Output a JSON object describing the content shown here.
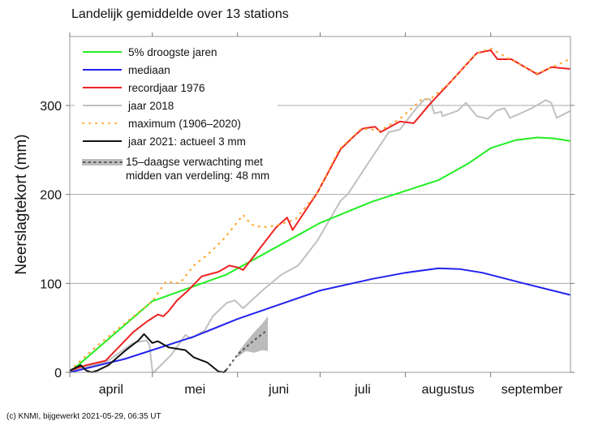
{
  "chart_data": {
    "type": "line",
    "title": "Landelijk gemiddelde over 13 stations",
    "xlabel": "",
    "ylabel": "Neerslagtekort (mm)",
    "x_unit": "days since 1 April",
    "xlim": [
      0,
      183
    ],
    "ylim": [
      0,
      377
    ],
    "yticks": [
      0,
      100,
      200,
      300
    ],
    "month_ticks": [
      0,
      30,
      61,
      91,
      122,
      153
    ],
    "month_labels": [
      {
        "label": "april",
        "mid": 15
      },
      {
        "label": "mei",
        "mid": 45.5
      },
      {
        "label": "juni",
        "mid": 76
      },
      {
        "label": "juli",
        "mid": 106.5
      },
      {
        "label": "augustus",
        "mid": 137.5
      },
      {
        "label": "september",
        "mid": 168
      }
    ],
    "grid": "horizontal",
    "legend_placement": "top-left",
    "series": [
      {
        "name": "5% droogste jaren",
        "color": "#22ee22",
        "style": "solid",
        "points": [
          [
            0,
            0
          ],
          [
            30,
            80
          ],
          [
            57,
            110
          ],
          [
            91,
            168
          ],
          [
            110,
            192
          ],
          [
            122,
            204
          ],
          [
            134,
            216
          ],
          [
            145,
            235
          ],
          [
            153,
            252
          ],
          [
            162,
            261
          ],
          [
            170,
            264
          ],
          [
            176,
            263
          ],
          [
            182,
            260
          ]
        ]
      },
      {
        "name": "mediaan",
        "color": "#2222ee",
        "style": "solid",
        "points": [
          [
            0,
            0
          ],
          [
            20,
            15
          ],
          [
            45,
            40
          ],
          [
            61,
            60
          ],
          [
            91,
            92
          ],
          [
            110,
            105
          ],
          [
            122,
            112
          ],
          [
            134,
            117
          ],
          [
            142,
            116
          ],
          [
            150,
            112
          ],
          [
            165,
            100
          ],
          [
            182,
            87
          ]
        ]
      },
      {
        "name": "maximum (1906–2020)",
        "color": "#ffaa33",
        "style": "dotted",
        "points": [
          [
            0,
            2
          ],
          [
            10,
            30
          ],
          [
            20,
            55
          ],
          [
            30,
            80
          ],
          [
            35,
            102
          ],
          [
            40,
            100
          ],
          [
            45,
            120
          ],
          [
            50,
            132
          ],
          [
            56,
            150
          ],
          [
            63,
            177
          ],
          [
            66,
            166
          ],
          [
            70,
            163
          ],
          [
            75,
            165
          ],
          [
            82,
            172
          ],
          [
            90,
            202
          ],
          [
            98,
            251
          ],
          [
            106,
            274
          ],
          [
            113,
            272
          ],
          [
            120,
            285
          ],
          [
            128,
            307
          ],
          [
            131,
            307
          ],
          [
            138,
            325
          ],
          [
            148,
            359
          ],
          [
            153,
            364
          ],
          [
            160,
            352
          ],
          [
            170,
            336
          ],
          [
            179,
            348
          ],
          [
            182,
            353
          ]
        ]
      },
      {
        "name": "recordjaar 1976",
        "color": "#ee2222",
        "style": "solid",
        "points": [
          [
            0,
            2
          ],
          [
            6,
            8
          ],
          [
            13,
            13
          ],
          [
            18,
            29
          ],
          [
            23,
            45
          ],
          [
            28,
            57
          ],
          [
            32,
            65
          ],
          [
            34,
            63
          ],
          [
            36,
            69
          ],
          [
            39,
            81
          ],
          [
            43,
            92
          ],
          [
            48,
            108
          ],
          [
            54,
            113
          ],
          [
            58,
            120
          ],
          [
            61,
            118
          ],
          [
            63,
            115
          ],
          [
            69,
            139
          ],
          [
            75,
            163
          ],
          [
            79,
            174
          ],
          [
            81,
            160
          ],
          [
            90,
            202
          ],
          [
            98.5,
            251
          ],
          [
            103.5,
            266
          ],
          [
            106.5,
            274
          ],
          [
            111,
            276
          ],
          [
            113,
            270
          ],
          [
            120,
            282
          ],
          [
            125,
            280
          ],
          [
            131,
            302
          ],
          [
            138,
            325
          ],
          [
            148,
            359
          ],
          [
            153,
            362
          ],
          [
            155.5,
            352
          ],
          [
            160.5,
            352
          ],
          [
            165.5,
            343
          ],
          [
            170,
            335
          ],
          [
            175,
            343
          ],
          [
            182,
            341
          ]
        ]
      },
      {
        "name": "jaar 2018",
        "color": "#c0c0c0",
        "style": "solid",
        "points": [
          [
            0,
            0
          ],
          [
            8,
            8
          ],
          [
            13,
            11
          ],
          [
            23,
            33
          ],
          [
            28,
            36
          ],
          [
            29,
            30
          ],
          [
            30,
            2
          ],
          [
            30.5,
            0
          ],
          [
            37,
            20
          ],
          [
            42,
            42
          ],
          [
            44,
            38
          ],
          [
            49,
            47
          ],
          [
            52,
            63
          ],
          [
            57,
            78
          ],
          [
            60,
            81
          ],
          [
            63,
            72
          ],
          [
            70,
            92
          ],
          [
            77,
            110
          ],
          [
            83,
            120
          ],
          [
            90,
            148
          ],
          [
            98.5,
            193
          ],
          [
            101,
            200
          ],
          [
            108,
            233
          ],
          [
            116,
            270
          ],
          [
            120,
            273
          ],
          [
            126,
            297
          ],
          [
            129,
            307
          ],
          [
            131,
            307
          ],
          [
            132.5,
            291
          ],
          [
            135,
            293
          ],
          [
            135.5,
            288
          ],
          [
            141,
            294
          ],
          [
            144,
            303
          ],
          [
            148,
            288
          ],
          [
            152,
            285
          ],
          [
            155,
            294
          ],
          [
            158,
            297
          ],
          [
            160,
            286
          ],
          [
            163,
            290
          ],
          [
            168,
            297
          ],
          [
            173,
            306
          ],
          [
            175,
            303
          ],
          [
            177,
            286
          ],
          [
            182,
            294
          ]
        ]
      },
      {
        "name": "jaar 2021: actueel 3 mm",
        "color": "#111111",
        "style": "solid",
        "points": [
          [
            0,
            2
          ],
          [
            4,
            8
          ],
          [
            6,
            2
          ],
          [
            8,
            0
          ],
          [
            10,
            2
          ],
          [
            14,
            8
          ],
          [
            20,
            24
          ],
          [
            25,
            36
          ],
          [
            27,
            43
          ],
          [
            30,
            33
          ],
          [
            32,
            35
          ],
          [
            36,
            28
          ],
          [
            38,
            27
          ],
          [
            42,
            25
          ],
          [
            45,
            17
          ],
          [
            50,
            11
          ],
          [
            54,
            1
          ],
          [
            56,
            0
          ],
          [
            57,
            3
          ]
        ]
      },
      {
        "name": "15–daagse verwachting met midden van verdeling: 48 mm",
        "color": "#555555",
        "style": "dotted-band",
        "band_color": "#bbbbbb",
        "points": [
          [
            57,
            3
          ],
          [
            61,
            20
          ],
          [
            67,
            36
          ],
          [
            72,
            48
          ]
        ],
        "band_lower": [
          [
            61,
            17
          ],
          [
            64,
            24
          ],
          [
            67,
            22
          ],
          [
            70,
            25
          ],
          [
            72,
            24
          ]
        ],
        "band_upper": [
          [
            61,
            22
          ],
          [
            64,
            34
          ],
          [
            67,
            45
          ],
          [
            70,
            55
          ],
          [
            72,
            63
          ]
        ]
      }
    ],
    "legend": [
      "5% droogste jaren",
      "mediaan",
      "recordjaar 1976",
      "jaar 2018",
      "maximum (1906–2020)",
      "jaar 2021: actueel 3 mm",
      "15–daagse verwachting met",
      "midden van verdeling: 48 mm"
    ],
    "footer": "(c) KNMI, bijgewerkt 2021-05-29, 06:35 UT"
  }
}
